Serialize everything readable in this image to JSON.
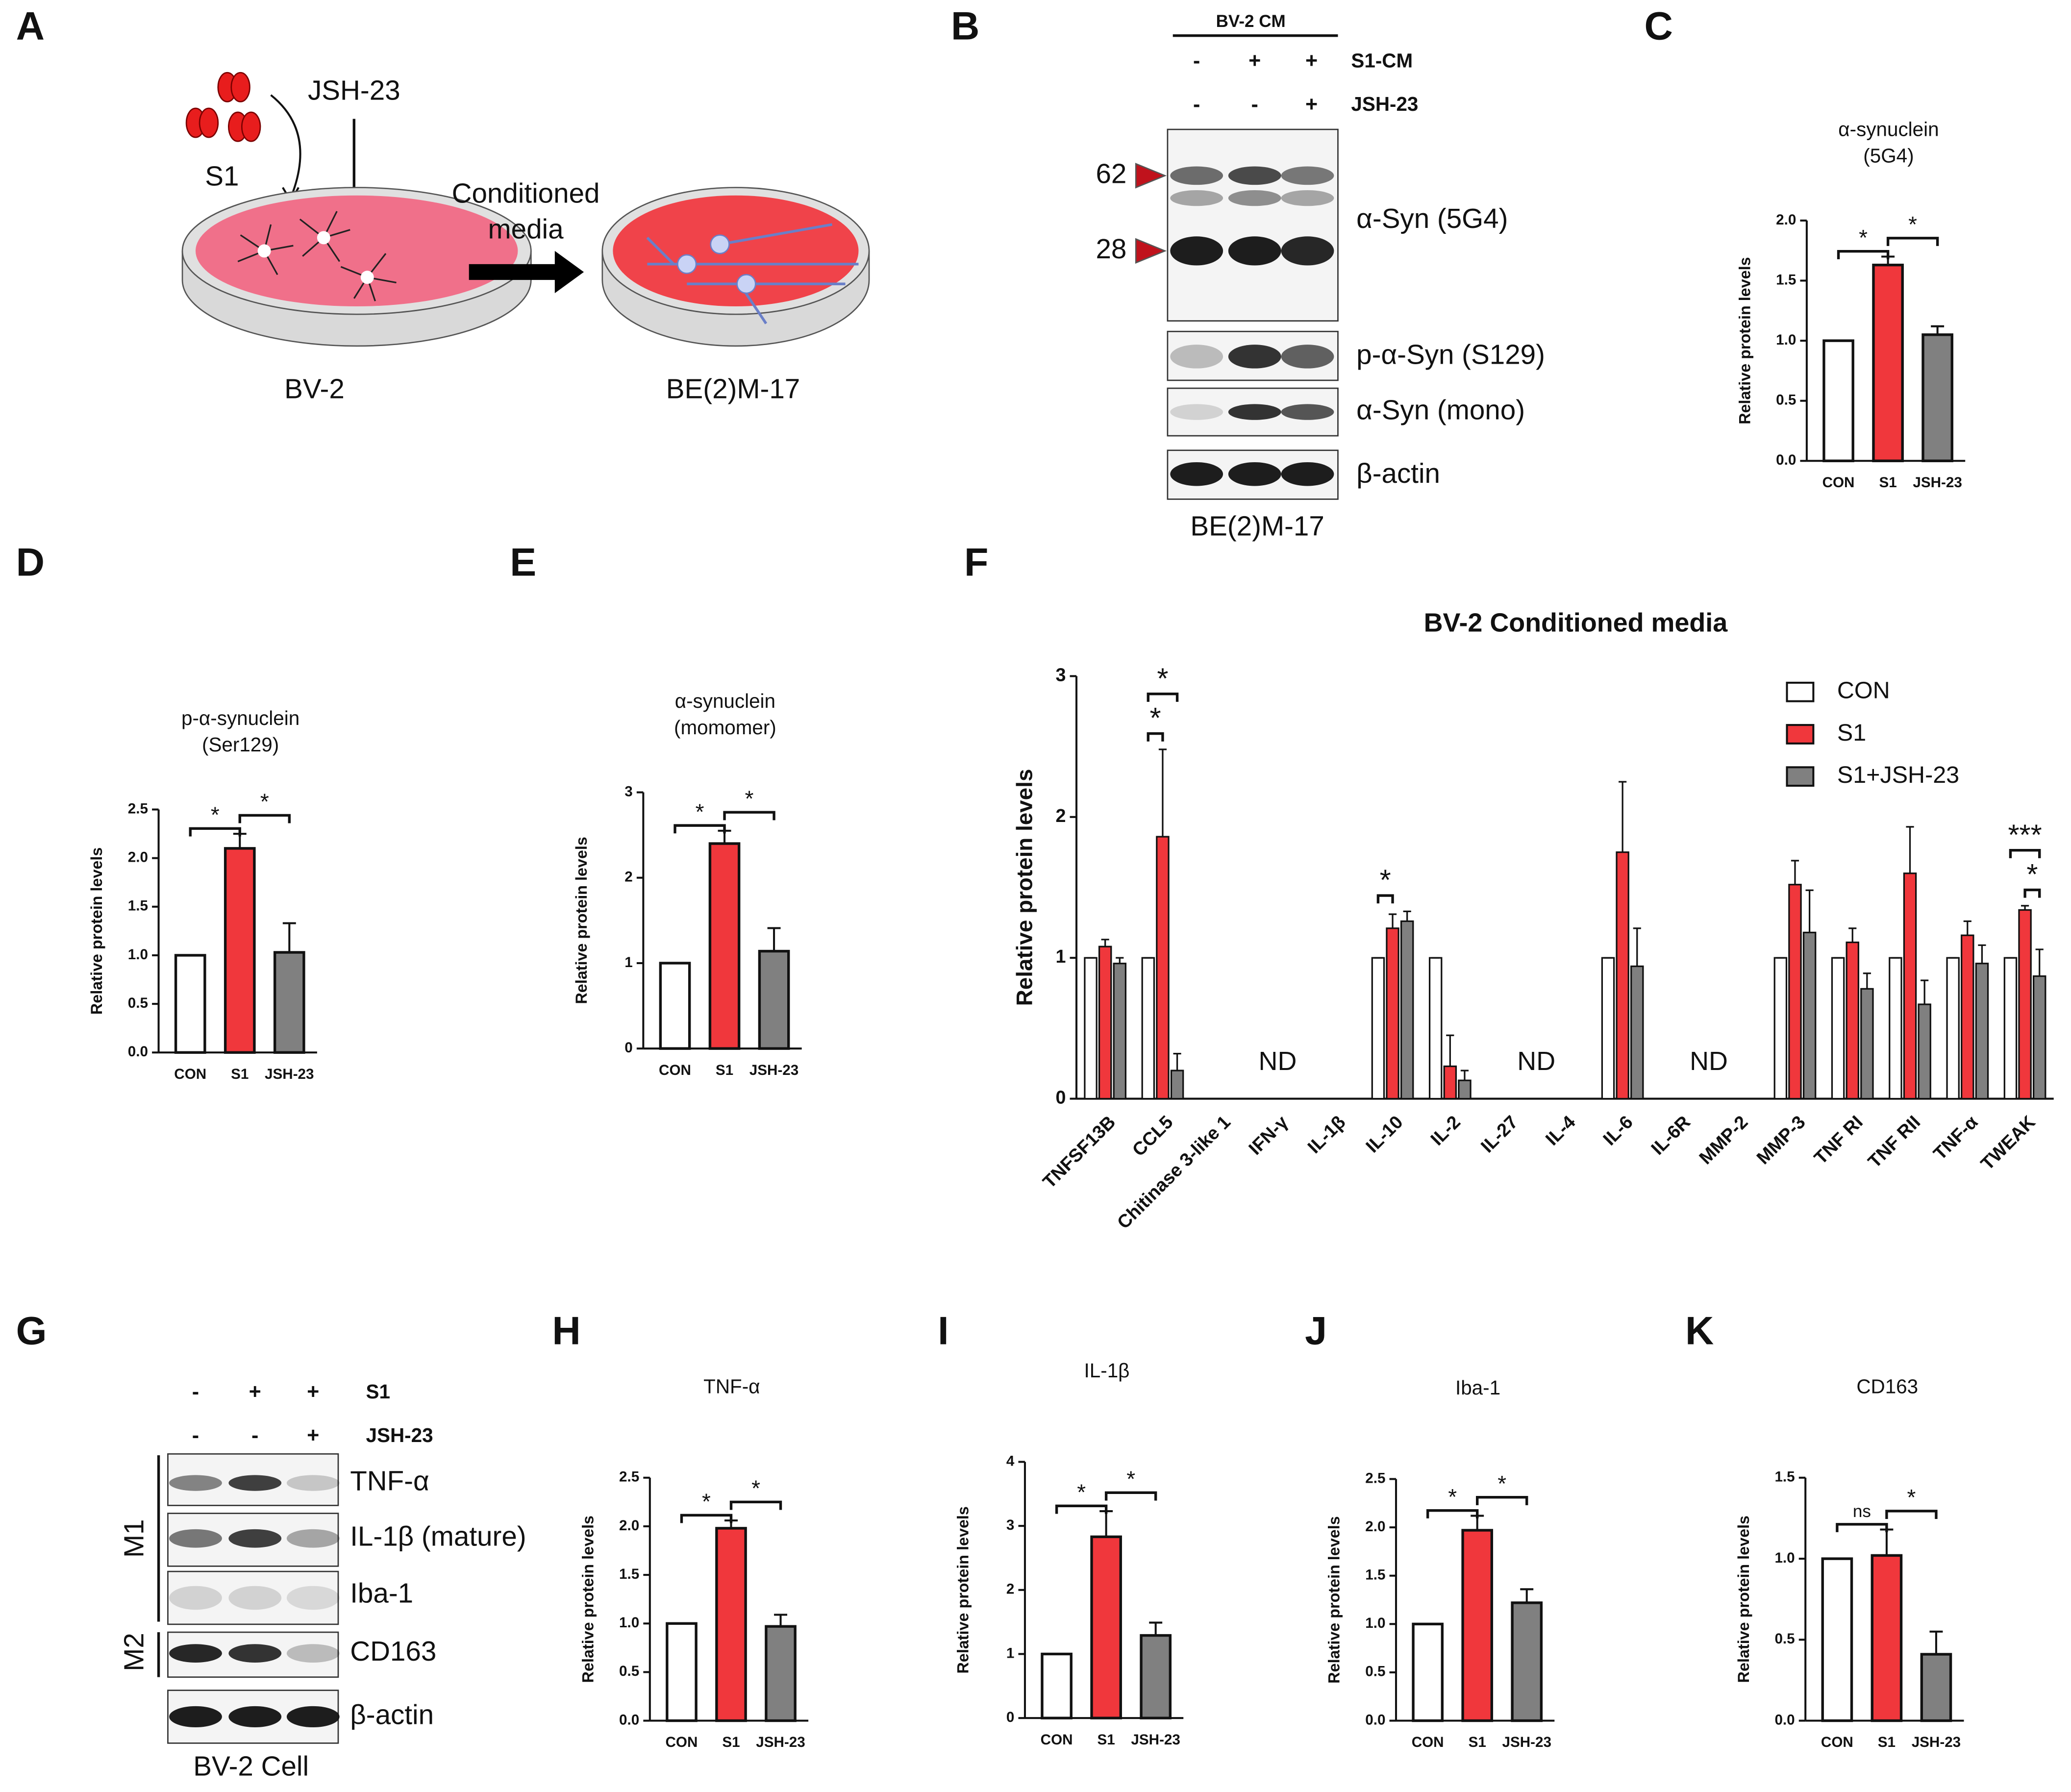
{
  "panel_labels": [
    "A",
    "B",
    "C",
    "D",
    "E",
    "F",
    "G",
    "H",
    "I",
    "J",
    "K"
  ],
  "diagram_a": {
    "stimulus": "S1",
    "inhibitor": "JSH-23",
    "arrow_label": [
      "Conditioned",
      "media"
    ],
    "source_cells": "BV-2",
    "target_cells": "BE(2)M-17"
  },
  "blot_b": {
    "header": "BV-2 CM",
    "conditions": [
      {
        "label": "S1-CM",
        "signs": [
          "-",
          "+",
          "+"
        ]
      },
      {
        "label": "JSH-23",
        "signs": [
          "-",
          "-",
          "+"
        ]
      }
    ],
    "markers": [
      62,
      28
    ],
    "bands": [
      "α-Syn (5G4)",
      "p-α-Syn (S129)",
      "α-Syn (mono)",
      "β-actin"
    ],
    "caption": "BE(2)M-17"
  },
  "blot_g": {
    "conditions": [
      {
        "label": "S1",
        "signs": [
          "-",
          "+",
          "+"
        ]
      },
      {
        "label": "JSH-23",
        "signs": [
          "-",
          "-",
          "+"
        ]
      }
    ],
    "groups": [
      "M1",
      "M2"
    ],
    "bands": [
      "TNF-α",
      "IL-1β (mature)",
      "Iba-1",
      "CD163",
      "β-actin"
    ],
    "caption": "BV-2 Cell"
  },
  "chart_data": [
    {
      "type": "bar",
      "title": [
        "α-synuclein",
        "(5G4)"
      ],
      "y_label": "Relative protein levels",
      "categories": [
        "CON",
        "S1",
        "JSH-23"
      ],
      "values": [
        1,
        1.63,
        1.05
      ],
      "errors": [
        0,
        0.07,
        0.07
      ],
      "colors": [
        "#ffffff",
        "#f0373c",
        "#808080"
      ],
      "ylim": [
        0,
        2
      ],
      "yticks": [
        {
          "value": 0,
          "label": "0.0"
        },
        {
          "value": 0.5,
          "label": "0.5"
        },
        {
          "value": 1,
          "label": "1.0"
        },
        {
          "value": 1.5,
          "label": "1.5"
        },
        {
          "value": 2,
          "label": "2.0"
        }
      ],
      "comparisons": [
        {
          "groups": [
            "CON",
            "S1"
          ],
          "label": "*"
        },
        {
          "groups": [
            "S1",
            "JSH-23"
          ],
          "label": "*"
        }
      ]
    },
    {
      "type": "bar",
      "title": [
        "p-α-synuclein",
        "(Ser129)"
      ],
      "y_label": "Relative protein levels",
      "categories": [
        "CON",
        "S1",
        "JSH-23"
      ],
      "values": [
        1,
        2.1,
        1.03
      ],
      "errors": [
        0,
        0.15,
        0.3
      ],
      "colors": [
        "#ffffff",
        "#f0373c",
        "#808080"
      ],
      "ylim": [
        0,
        2.5
      ],
      "yticks": [
        {
          "value": 0,
          "label": "0.0"
        },
        {
          "value": 0.5,
          "label": "0.5"
        },
        {
          "value": 1,
          "label": "1.0"
        },
        {
          "value": 1.5,
          "label": "1.5"
        },
        {
          "value": 2,
          "label": "2.0"
        },
        {
          "value": 2.5,
          "label": "2.5"
        }
      ],
      "comparisons": [
        {
          "groups": [
            "CON",
            "S1"
          ],
          "label": "*"
        },
        {
          "groups": [
            "S1",
            "JSH-23"
          ],
          "label": "*"
        }
      ]
    },
    {
      "type": "bar",
      "title": [
        "α-synuclein",
        "(momomer)"
      ],
      "y_label": "Relative protein levels",
      "categories": [
        "CON",
        "S1",
        "JSH-23"
      ],
      "values": [
        1,
        2.4,
        1.14
      ],
      "errors": [
        0,
        0.15,
        0.27
      ],
      "colors": [
        "#ffffff",
        "#f0373c",
        "#808080"
      ],
      "ylim": [
        0,
        3
      ],
      "yticks": [
        0,
        1,
        2,
        3
      ],
      "comparisons": [
        {
          "groups": [
            "CON",
            "S1"
          ],
          "label": "*"
        },
        {
          "groups": [
            "S1",
            "JSH-23"
          ],
          "label": "*"
        }
      ]
    },
    {
      "type": "grouped_bar",
      "title": "BV-2 Conditioned media",
      "y_label": "Relative protein levels",
      "categories": [
        "TNFSF13B",
        "CCL5",
        "Chitinase 3-like 1",
        "IFN-γ",
        "IL-1β",
        "IL-10",
        "IL-2",
        "IL-27",
        "IL-4",
        "IL-6",
        "IL-6R",
        "MMP-2",
        "MMP-3",
        "TNF RI",
        "TNF RII",
        "TNF-α",
        "TWEAK"
      ],
      "series": [
        {
          "name": "CON",
          "color": "#ffffff",
          "values": [
            1,
            1,
            null,
            null,
            null,
            1,
            1,
            null,
            null,
            1,
            null,
            null,
            1,
            1,
            1,
            1,
            1
          ],
          "errors": [
            0,
            0,
            null,
            null,
            null,
            0,
            0,
            null,
            null,
            0,
            null,
            null,
            0,
            0,
            0,
            0,
            0
          ]
        },
        {
          "name": "S1",
          "color": "#f0373c",
          "values": [
            1.08,
            1.86,
            null,
            null,
            null,
            1.21,
            0.23,
            null,
            null,
            1.75,
            null,
            null,
            1.52,
            1.11,
            1.6,
            1.16,
            1.34
          ],
          "errors": [
            0.05,
            0.62,
            null,
            null,
            null,
            0.1,
            0.22,
            null,
            null,
            0.5,
            null,
            null,
            0.17,
            0.1,
            0.33,
            0.1,
            0.03
          ]
        },
        {
          "name": "S1+JSH-23",
          "color": "#808080",
          "values": [
            0.96,
            0.2,
            null,
            null,
            null,
            1.26,
            0.13,
            null,
            null,
            0.94,
            null,
            null,
            1.18,
            0.78,
            0.67,
            0.96,
            0.87
          ],
          "errors": [
            0.04,
            0.12,
            null,
            null,
            null,
            0.07,
            0.07,
            null,
            null,
            0.27,
            null,
            null,
            0.3,
            0.11,
            0.17,
            0.13,
            0.19
          ]
        }
      ],
      "ylim": [
        0,
        3
      ],
      "yticks": [
        0,
        1,
        2,
        3
      ],
      "legend": "upper right",
      "nd_labels": [
        {
          "text": "ND",
          "categories": [
            "Chitinase 3-like 1",
            "IFN-γ",
            "IL-1β"
          ]
        },
        {
          "text": "ND",
          "categories": [
            "IL-27",
            "IL-4"
          ]
        },
        {
          "text": "ND",
          "categories": [
            "IL-6R",
            "MMP-2"
          ]
        }
      ],
      "comparisons": [
        {
          "category": "CCL5",
          "groups": [
            "CON",
            "S1"
          ],
          "label": "*"
        },
        {
          "category": "CCL5",
          "groups": [
            "CON",
            "S1+JSH-23"
          ],
          "label": "*"
        },
        {
          "category": "IL-10",
          "groups": [
            "CON",
            "S1"
          ],
          "label": "*"
        },
        {
          "category": "TWEAK",
          "groups": [
            "S1",
            "S1+JSH-23"
          ],
          "label": "*"
        },
        {
          "category": "TWEAK",
          "groups": [
            "CON",
            "S1+JSH-23"
          ],
          "label": "***"
        }
      ]
    },
    {
      "type": "bar",
      "title": [
        "TNF-α"
      ],
      "y_label": "Relative protein levels",
      "categories": [
        "CON",
        "S1",
        "JSH-23"
      ],
      "values": [
        1,
        1.98,
        0.97
      ],
      "errors": [
        0,
        0.08,
        0.12
      ],
      "colors": [
        "#ffffff",
        "#f0373c",
        "#808080"
      ],
      "ylim": [
        0,
        2.5
      ],
      "yticks": [
        {
          "value": 0,
          "label": "0.0"
        },
        {
          "value": 0.5,
          "label": "0.5"
        },
        {
          "value": 1,
          "label": "1.0"
        },
        {
          "value": 1.5,
          "label": "1.5"
        },
        {
          "value": 2,
          "label": "2.0"
        },
        {
          "value": 2.5,
          "label": "2.5"
        }
      ],
      "comparisons": [
        {
          "groups": [
            "CON",
            "S1"
          ],
          "label": "*"
        },
        {
          "groups": [
            "S1",
            "JSH-23"
          ],
          "label": "*"
        }
      ]
    },
    {
      "type": "bar",
      "title": [
        "IL-1β"
      ],
      "y_label": "Relative protein levels",
      "categories": [
        "CON",
        "S1",
        "JSH-23"
      ],
      "values": [
        1,
        2.83,
        1.29
      ],
      "errors": [
        0,
        0.4,
        0.2
      ],
      "colors": [
        "#ffffff",
        "#f0373c",
        "#808080"
      ],
      "ylim": [
        0,
        4
      ],
      "yticks": [
        0,
        1,
        2,
        3,
        4
      ],
      "comparisons": [
        {
          "groups": [
            "CON",
            "S1"
          ],
          "label": "*"
        },
        {
          "groups": [
            "S1",
            "JSH-23"
          ],
          "label": "*"
        }
      ]
    },
    {
      "type": "bar",
      "title": [
        "Iba-1"
      ],
      "y_label": "Relative protein levels",
      "categories": [
        "CON",
        "S1",
        "JSH-23"
      ],
      "values": [
        1,
        1.97,
        1.22
      ],
      "errors": [
        0,
        0.15,
        0.14
      ],
      "colors": [
        "#ffffff",
        "#f0373c",
        "#808080"
      ],
      "ylim": [
        0,
        2.5
      ],
      "yticks": [
        {
          "value": 0,
          "label": "0.0"
        },
        {
          "value": 0.5,
          "label": "0.5"
        },
        {
          "value": 1,
          "label": "1.0"
        },
        {
          "value": 1.5,
          "label": "1.5"
        },
        {
          "value": 2,
          "label": "2.0"
        },
        {
          "value": 2.5,
          "label": "2.5"
        }
      ],
      "comparisons": [
        {
          "groups": [
            "CON",
            "S1"
          ],
          "label": "*"
        },
        {
          "groups": [
            "S1",
            "JSH-23"
          ],
          "label": "*"
        }
      ]
    },
    {
      "type": "bar",
      "title": [
        "CD163"
      ],
      "y_label": "Relative protein levels",
      "categories": [
        "CON",
        "S1",
        "JSH-23"
      ],
      "values": [
        1,
        1.02,
        0.41
      ],
      "errors": [
        0,
        0.16,
        0.14
      ],
      "colors": [
        "#ffffff",
        "#f0373c",
        "#808080"
      ],
      "ylim": [
        0,
        1.5
      ],
      "yticks": [
        {
          "value": 0,
          "label": "0.0"
        },
        {
          "value": 0.5,
          "label": "0.5"
        },
        {
          "value": 1,
          "label": "1.0"
        },
        {
          "value": 1.5,
          "label": "1.5"
        }
      ],
      "comparisons": [
        {
          "groups": [
            "CON",
            "S1"
          ],
          "label": "ns"
        },
        {
          "groups": [
            "S1",
            "JSH-23"
          ],
          "label": "*"
        }
      ]
    }
  ]
}
